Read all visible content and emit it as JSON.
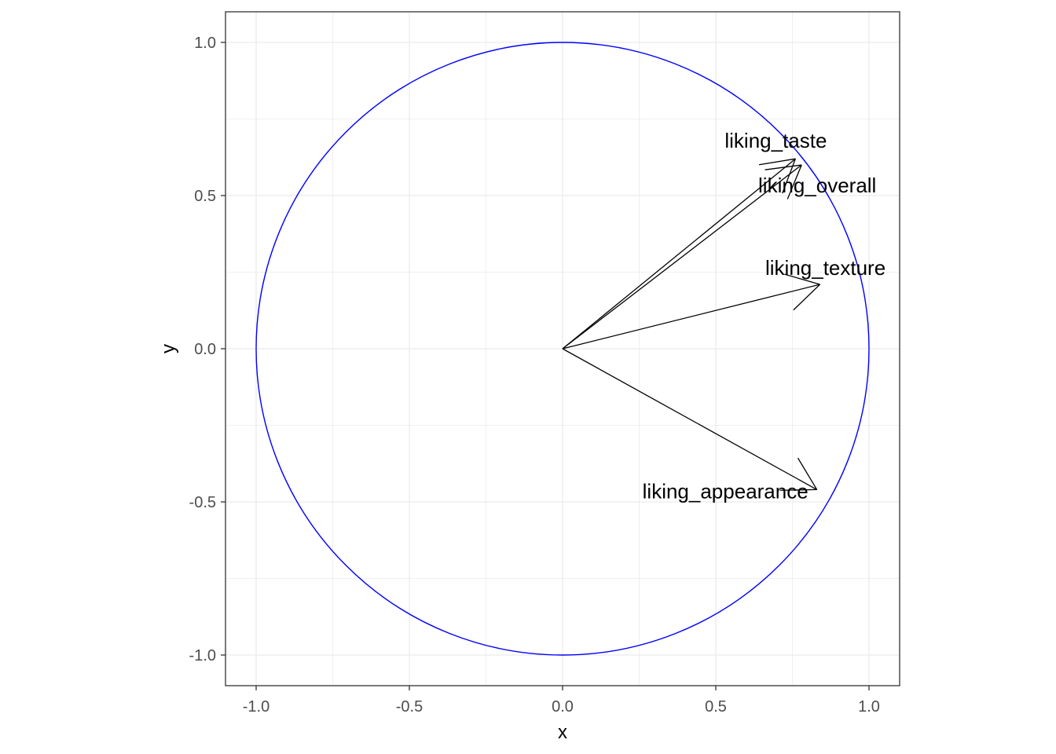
{
  "chart_data": {
    "type": "scatter",
    "title": "",
    "xlabel": "x",
    "ylabel": "y",
    "xlim": [
      -1.1,
      1.1
    ],
    "ylim": [
      -1.1,
      1.1
    ],
    "x_ticks": [
      -1.0,
      -0.5,
      0.0,
      0.5,
      1.0
    ],
    "y_ticks": [
      -1.0,
      -0.5,
      0.0,
      0.5,
      1.0
    ],
    "x_tick_labels": [
      "-1.0",
      "-0.5",
      "0.0",
      "0.5",
      "1.0"
    ],
    "y_tick_labels": [
      "-1.0",
      "-0.5",
      "0.0",
      "0.5",
      "1.0"
    ],
    "grid": true,
    "legend": "none",
    "circle": {
      "center": [
        0,
        0
      ],
      "radius": 1,
      "color": "#0000ff"
    },
    "vectors": [
      {
        "name": "liking_taste",
        "x": 0.76,
        "y": 0.62
      },
      {
        "name": "liking_overall",
        "x": 0.78,
        "y": 0.6
      },
      {
        "name": "liking_texture",
        "x": 0.84,
        "y": 0.21
      },
      {
        "name": "liking_appearance",
        "x": 0.83,
        "y": -0.46
      }
    ],
    "vector_color": "#000000",
    "panel_border_color": "#333333",
    "grid_color": "#ebebeb"
  }
}
